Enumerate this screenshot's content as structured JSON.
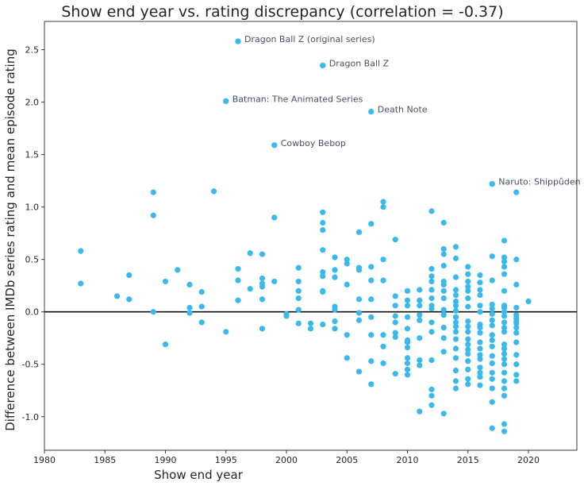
{
  "chart_data": {
    "type": "scatter",
    "title": "Show end year vs. rating discrepancy (correlation = -0.37)",
    "xlabel": "Show end year",
    "ylabel": "Difference between IMDb series rating and mean episode rating",
    "xlim": [
      1980,
      2024
    ],
    "ylim": [
      -1.32,
      2.77
    ],
    "xticks": [
      1980,
      1985,
      1990,
      1995,
      2000,
      2005,
      2010,
      2015,
      2020
    ],
    "yticks": [
      -1.0,
      -0.5,
      0.0,
      0.5,
      1.0,
      1.5,
      2.0,
      2.5
    ],
    "grid": false,
    "reference_line_y": 0,
    "point_color": "#3bb9ec",
    "annotation_color": "#4a4f66",
    "points": [
      [
        1983,
        0.58
      ],
      [
        1983,
        0.27
      ],
      [
        1986,
        0.15
      ],
      [
        1987,
        0.35
      ],
      [
        1987,
        0.12
      ],
      [
        1989,
        1.14
      ],
      [
        1989,
        0.92
      ],
      [
        1989,
        0.0
      ],
      [
        1990,
        0.29
      ],
      [
        1990,
        -0.31
      ],
      [
        1991,
        0.4
      ],
      [
        1992,
        0.26
      ],
      [
        1992,
        0.04
      ],
      [
        1992,
        -0.01
      ],
      [
        1993,
        0.19
      ],
      [
        1993,
        0.05
      ],
      [
        1993,
        -0.1
      ],
      [
        1994,
        1.15
      ],
      [
        1995,
        2.01
      ],
      [
        1995,
        -0.19
      ],
      [
        1996,
        2.58
      ],
      [
        1996,
        0.41
      ],
      [
        1996,
        0.3
      ],
      [
        1996,
        0.11
      ],
      [
        1997,
        0.56
      ],
      [
        1997,
        0.22
      ],
      [
        1998,
        0.55
      ],
      [
        1998,
        0.32
      ],
      [
        1998,
        0.27
      ],
      [
        1998,
        0.24
      ],
      [
        1998,
        0.12
      ],
      [
        1998,
        -0.16
      ],
      [
        1999,
        1.59
      ],
      [
        1999,
        0.9
      ],
      [
        1999,
        0.29
      ],
      [
        2000,
        -0.02
      ],
      [
        2000,
        -0.04
      ],
      [
        2001,
        0.42
      ],
      [
        2001,
        0.29
      ],
      [
        2001,
        0.2
      ],
      [
        2001,
        0.13
      ],
      [
        2001,
        0.02
      ],
      [
        2001,
        -0.11
      ],
      [
        2002,
        -0.11
      ],
      [
        2002,
        -0.16
      ],
      [
        2003,
        2.35
      ],
      [
        2003,
        0.95
      ],
      [
        2003,
        0.85
      ],
      [
        2003,
        0.78
      ],
      [
        2003,
        0.59
      ],
      [
        2003,
        0.38
      ],
      [
        2003,
        0.34
      ],
      [
        2003,
        0.2
      ],
      [
        2003,
        0.19
      ],
      [
        2003,
        -0.12
      ],
      [
        2004,
        0.52
      ],
      [
        2004,
        0.4
      ],
      [
        2004,
        0.33
      ],
      [
        2004,
        0.05
      ],
      [
        2004,
        0.02
      ],
      [
        2004,
        -0.09
      ],
      [
        2004,
        -0.16
      ],
      [
        2005,
        0.5
      ],
      [
        2005,
        0.46
      ],
      [
        2005,
        0.26
      ],
      [
        2005,
        -0.22
      ],
      [
        2005,
        -0.44
      ],
      [
        2006,
        0.76
      ],
      [
        2006,
        0.42
      ],
      [
        2006,
        0.4
      ],
      [
        2006,
        0.12
      ],
      [
        2006,
        -0.01
      ],
      [
        2006,
        -0.08
      ],
      [
        2006,
        -0.57
      ],
      [
        2007,
        1.91
      ],
      [
        2007,
        0.84
      ],
      [
        2007,
        0.43
      ],
      [
        2007,
        0.3
      ],
      [
        2007,
        0.12
      ],
      [
        2007,
        -0.05
      ],
      [
        2007,
        -0.22
      ],
      [
        2007,
        -0.47
      ],
      [
        2007,
        -0.69
      ],
      [
        2008,
        1.05
      ],
      [
        2008,
        1.0
      ],
      [
        2008,
        0.5
      ],
      [
        2008,
        0.3
      ],
      [
        2008,
        -0.22
      ],
      [
        2008,
        -0.33
      ],
      [
        2008,
        -0.49
      ],
      [
        2009,
        0.69
      ],
      [
        2009,
        0.15
      ],
      [
        2009,
        0.06
      ],
      [
        2009,
        -0.04
      ],
      [
        2009,
        -0.1
      ],
      [
        2009,
        -0.2
      ],
      [
        2009,
        -0.24
      ],
      [
        2009,
        -0.59
      ],
      [
        2010,
        0.2
      ],
      [
        2010,
        0.11
      ],
      [
        2010,
        0.06
      ],
      [
        2010,
        -0.05
      ],
      [
        2010,
        -0.16
      ],
      [
        2010,
        -0.27
      ],
      [
        2010,
        -0.29
      ],
      [
        2010,
        -0.34
      ],
      [
        2010,
        -0.44
      ],
      [
        2010,
        -0.49
      ],
      [
        2010,
        -0.55
      ],
      [
        2010,
        -0.6
      ],
      [
        2011,
        0.21
      ],
      [
        2011,
        0.11
      ],
      [
        2011,
        0.06
      ],
      [
        2011,
        -0.03
      ],
      [
        2011,
        -0.08
      ],
      [
        2011,
        -0.25
      ],
      [
        2011,
        -0.46
      ],
      [
        2011,
        -0.51
      ],
      [
        2011,
        -0.95
      ],
      [
        2012,
        0.96
      ],
      [
        2012,
        0.41
      ],
      [
        2012,
        0.34
      ],
      [
        2012,
        0.29
      ],
      [
        2012,
        0.21
      ],
      [
        2012,
        0.13
      ],
      [
        2012,
        0.06
      ],
      [
        2012,
        0.03
      ],
      [
        2012,
        -0.1
      ],
      [
        2012,
        -0.19
      ],
      [
        2012,
        -0.46
      ],
      [
        2012,
        -0.74
      ],
      [
        2012,
        -0.8
      ],
      [
        2012,
        -0.89
      ],
      [
        2013,
        0.85
      ],
      [
        2013,
        0.6
      ],
      [
        2013,
        0.55
      ],
      [
        2013,
        0.44
      ],
      [
        2013,
        0.29
      ],
      [
        2013,
        0.26
      ],
      [
        2013,
        0.2
      ],
      [
        2013,
        0.13
      ],
      [
        2013,
        0.02
      ],
      [
        2013,
        -0.03
      ],
      [
        2013,
        -0.15
      ],
      [
        2013,
        -0.25
      ],
      [
        2013,
        -0.38
      ],
      [
        2013,
        -0.97
      ],
      [
        2014,
        0.62
      ],
      [
        2014,
        0.51
      ],
      [
        2014,
        0.33
      ],
      [
        2014,
        0.21
      ],
      [
        2014,
        0.16
      ],
      [
        2014,
        0.1
      ],
      [
        2014,
        0.06
      ],
      [
        2014,
        0.01
      ],
      [
        2014,
        -0.05
      ],
      [
        2014,
        -0.1
      ],
      [
        2014,
        -0.14
      ],
      [
        2014,
        -0.19
      ],
      [
        2014,
        -0.26
      ],
      [
        2014,
        -0.35
      ],
      [
        2014,
        -0.44
      ],
      [
        2014,
        -0.56
      ],
      [
        2014,
        -0.66
      ],
      [
        2014,
        -0.73
      ],
      [
        2015,
        0.43
      ],
      [
        2015,
        0.36
      ],
      [
        2015,
        0.29
      ],
      [
        2015,
        0.24
      ],
      [
        2015,
        0.2
      ],
      [
        2015,
        0.13
      ],
      [
        2015,
        0.05
      ],
      [
        2015,
        -0.09
      ],
      [
        2015,
        -0.14
      ],
      [
        2015,
        -0.19
      ],
      [
        2015,
        -0.26
      ],
      [
        2015,
        -0.31
      ],
      [
        2015,
        -0.36
      ],
      [
        2015,
        -0.4
      ],
      [
        2015,
        -0.47
      ],
      [
        2015,
        -0.55
      ],
      [
        2015,
        -0.64
      ],
      [
        2015,
        -0.69
      ],
      [
        2016,
        0.35
      ],
      [
        2016,
        0.28
      ],
      [
        2016,
        0.21
      ],
      [
        2016,
        0.16
      ],
      [
        2016,
        0.06
      ],
      [
        2016,
        0.0
      ],
      [
        2016,
        -0.12
      ],
      [
        2016,
        -0.15
      ],
      [
        2016,
        -0.2
      ],
      [
        2016,
        -0.29
      ],
      [
        2016,
        -0.35
      ],
      [
        2016,
        -0.41
      ],
      [
        2016,
        -0.45
      ],
      [
        2016,
        -0.53
      ],
      [
        2016,
        -0.58
      ],
      [
        2016,
        -0.62
      ],
      [
        2016,
        -0.7
      ],
      [
        2017,
        1.22
      ],
      [
        2017,
        0.53
      ],
      [
        2017,
        0.3
      ],
      [
        2017,
        0.07
      ],
      [
        2017,
        0.03
      ],
      [
        2017,
        -0.02
      ],
      [
        2017,
        -0.08
      ],
      [
        2017,
        -0.13
      ],
      [
        2017,
        -0.22
      ],
      [
        2017,
        -0.27
      ],
      [
        2017,
        -0.33
      ],
      [
        2017,
        -0.42
      ],
      [
        2017,
        -0.49
      ],
      [
        2017,
        -0.58
      ],
      [
        2017,
        -0.64
      ],
      [
        2017,
        -0.73
      ],
      [
        2017,
        -0.86
      ],
      [
        2017,
        -1.11
      ],
      [
        2018,
        0.68
      ],
      [
        2018,
        0.52
      ],
      [
        2018,
        0.48
      ],
      [
        2018,
        0.43
      ],
      [
        2018,
        0.36
      ],
      [
        2018,
        0.2
      ],
      [
        2018,
        0.06
      ],
      [
        2018,
        0.04
      ],
      [
        2018,
        0.0
      ],
      [
        2018,
        -0.04
      ],
      [
        2018,
        -0.1
      ],
      [
        2018,
        -0.15
      ],
      [
        2018,
        -0.19
      ],
      [
        2018,
        -0.31
      ],
      [
        2018,
        -0.35
      ],
      [
        2018,
        -0.4
      ],
      [
        2018,
        -0.45
      ],
      [
        2018,
        -0.5
      ],
      [
        2018,
        -0.58
      ],
      [
        2018,
        -0.66
      ],
      [
        2018,
        -0.73
      ],
      [
        2018,
        -0.8
      ],
      [
        2018,
        -1.07
      ],
      [
        2018,
        -1.14
      ],
      [
        2019,
        1.14
      ],
      [
        2019,
        0.5
      ],
      [
        2019,
        0.26
      ],
      [
        2019,
        0.04
      ],
      [
        2019,
        -0.03
      ],
      [
        2019,
        -0.06
      ],
      [
        2019,
        -0.09
      ],
      [
        2019,
        -0.11
      ],
      [
        2019,
        -0.15
      ],
      [
        2019,
        -0.2
      ],
      [
        2019,
        -0.29
      ],
      [
        2019,
        -0.41
      ],
      [
        2019,
        -0.5
      ],
      [
        2019,
        -0.6
      ],
      [
        2019,
        -0.66
      ],
      [
        2020,
        0.1
      ]
    ],
    "annotations": [
      {
        "text": "Dragon Ball Z (original series)",
        "x": 1996,
        "y": 2.58
      },
      {
        "text": "Dragon Ball Z",
        "x": 2003,
        "y": 2.35
      },
      {
        "text": "Batman: The Animated Series",
        "x": 1995,
        "y": 2.01
      },
      {
        "text": "Death Note",
        "x": 2007,
        "y": 1.91
      },
      {
        "text": "Cowboy Bebop",
        "x": 1999,
        "y": 1.59
      },
      {
        "text": "Naruto: Shippûden",
        "x": 2017,
        "y": 1.22
      }
    ]
  }
}
